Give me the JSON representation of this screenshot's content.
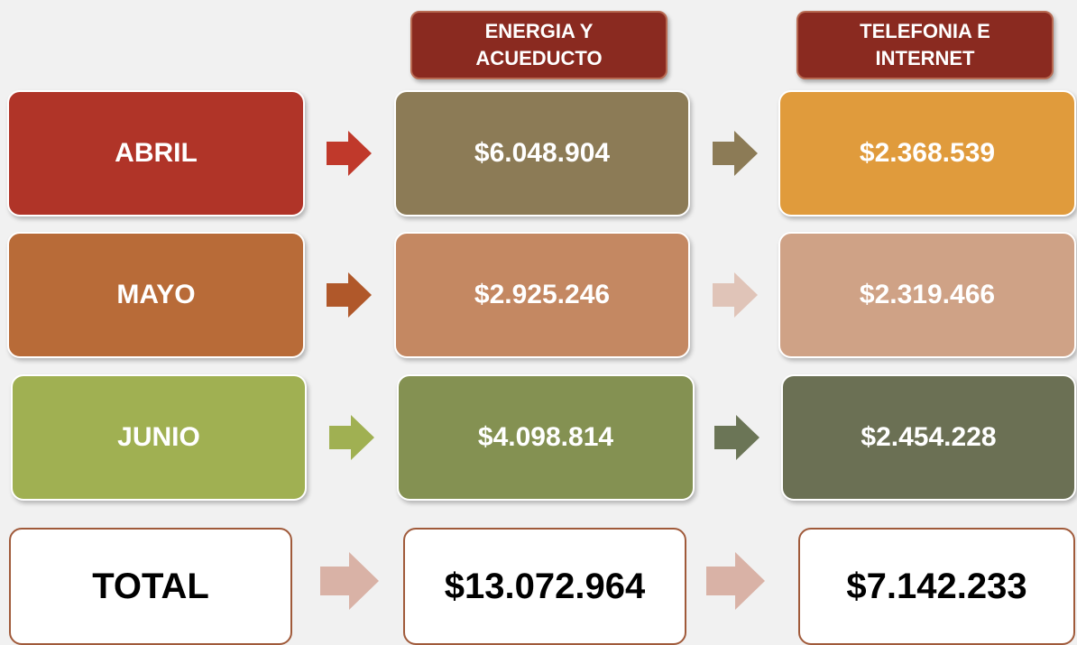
{
  "headers": [
    [
      "ENERGIA Y",
      "ACUEDUCTO"
    ],
    [
      "TELEFONIA E",
      "INTERNET"
    ]
  ],
  "rows": [
    {
      "label": "ABRIL",
      "energia": "$6.048.904",
      "telefonia": "$2.368.539"
    },
    {
      "label": "MAYO",
      "energia": "$2.925.246",
      "telefonia": "$2.319.466"
    },
    {
      "label": "JUNIO",
      "energia": "$4.098.814",
      "telefonia": "$2.454.228"
    }
  ],
  "total": {
    "label": "TOTAL",
    "energia": "$13.072.964",
    "telefonia": "$7.142.233"
  }
}
